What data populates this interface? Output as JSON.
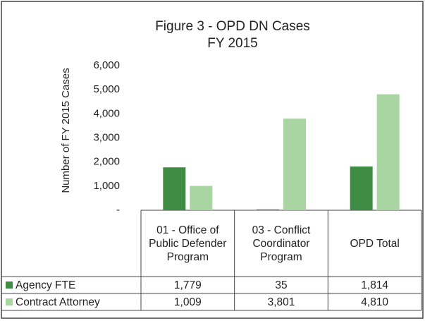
{
  "chart_data": {
    "type": "bar",
    "title": [
      "Figure 3 - OPD DN Cases",
      "FY 2015"
    ],
    "y_label": "Number of FY 2015 Cases",
    "categories": [
      "01 - Office of Public Defender Program",
      "03 - Conflict Coordinator Program",
      "OPD Total"
    ],
    "series": [
      {
        "name": "Agency FTE",
        "color": "#3e8c43",
        "values": [
          1779,
          35,
          1814
        ],
        "value_labels": [
          "1,779",
          "35",
          "1,814"
        ]
      },
      {
        "name": "Contract Attorney",
        "color": "#a8d5a2",
        "values": [
          1009,
          3801,
          4810
        ],
        "value_labels": [
          "1,009",
          "3,801",
          "4,810"
        ]
      }
    ],
    "ylim": [
      0,
      6000
    ],
    "yticks": [
      {
        "value": 0,
        "label": "-"
      },
      {
        "value": 1000,
        "label": "1,000"
      },
      {
        "value": 2000,
        "label": "2,000"
      },
      {
        "value": 3000,
        "label": "3,000"
      },
      {
        "value": 4000,
        "label": "4,000"
      },
      {
        "value": 5000,
        "label": "5,000"
      },
      {
        "value": 6000,
        "label": "6,000"
      }
    ],
    "grid": false
  }
}
